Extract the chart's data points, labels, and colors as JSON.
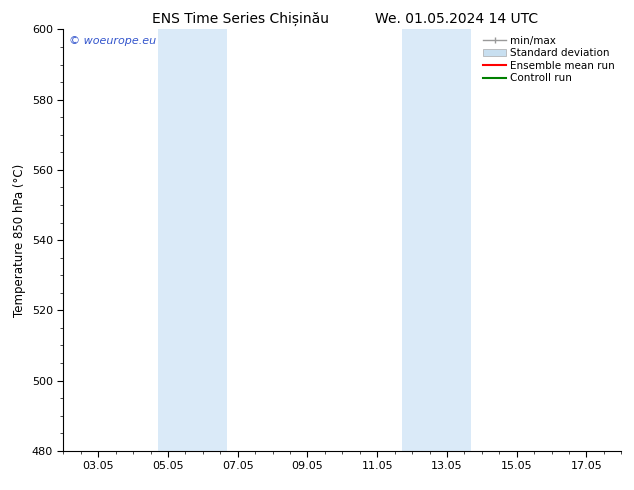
{
  "title_left": "ENS Time Series Chișinău",
  "title_right": "We. 01.05.2024 14 UTC",
  "ylabel": "Temperature 850 hPa (°C)",
  "ylim": [
    480,
    600
  ],
  "yticks": [
    480,
    500,
    520,
    540,
    560,
    580,
    600
  ],
  "xtick_labels": [
    "03.05",
    "05.05",
    "07.05",
    "09.05",
    "11.05",
    "13.05",
    "15.05",
    "17.05"
  ],
  "xtick_positions": [
    2,
    4,
    6,
    8,
    10,
    12,
    14,
    16
  ],
  "xlim": [
    1,
    17
  ],
  "bg_color": "#ffffff",
  "shaded_bands": [
    {
      "x_start": 3.7,
      "x_end": 5.7,
      "color": "#daeaf8"
    },
    {
      "x_start": 10.7,
      "x_end": 12.7,
      "color": "#daeaf8"
    }
  ],
  "legend_items": [
    {
      "label": "min/max",
      "color": "#999999"
    },
    {
      "label": "Standard deviation",
      "color": "#c8dff0"
    },
    {
      "label": "Ensemble mean run",
      "color": "#ff0000"
    },
    {
      "label": "Controll run",
      "color": "#008000"
    }
  ],
  "watermark_text": "© woeurope.eu",
  "watermark_color": "#3355cc",
  "title_fontsize": 10,
  "axis_label_fontsize": 8.5,
  "tick_fontsize": 8,
  "legend_fontsize": 7.5
}
